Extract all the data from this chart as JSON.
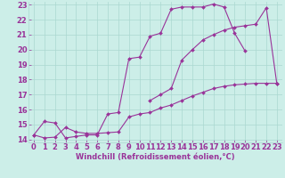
{
  "line1_x": [
    0,
    1,
    2,
    3,
    4,
    5,
    6,
    7,
    8,
    9,
    10,
    11,
    12,
    13,
    14,
    15,
    16,
    17,
    18,
    19,
    20,
    21,
    22,
    23
  ],
  "line1_y": [
    14.3,
    15.2,
    15.1,
    14.1,
    14.2,
    14.3,
    14.3,
    15.7,
    15.8,
    19.4,
    19.5,
    20.9,
    21.1,
    22.7,
    22.85,
    22.85,
    22.85,
    23.05,
    22.85,
    21.1,
    19.9,
    null,
    null,
    null
  ],
  "line2_x": [
    0,
    1,
    2,
    3,
    4,
    5,
    6,
    7,
    8,
    9,
    10,
    11,
    12,
    13,
    14,
    15,
    16,
    17,
    18,
    19,
    20,
    21,
    22,
    23
  ],
  "line2_y": [
    14.3,
    14.1,
    14.15,
    14.8,
    14.5,
    14.4,
    14.4,
    14.45,
    14.5,
    15.5,
    15.7,
    15.8,
    16.1,
    16.3,
    16.6,
    16.9,
    17.15,
    17.4,
    17.55,
    17.65,
    17.7,
    17.75,
    17.75,
    17.75
  ],
  "line3_x": [
    0,
    1,
    2,
    3,
    4,
    5,
    6,
    7,
    8,
    9,
    10,
    11,
    12,
    13,
    14,
    15,
    16,
    17,
    18,
    19,
    20,
    21,
    22,
    23
  ],
  "line3_y": [
    null,
    null,
    null,
    null,
    null,
    null,
    null,
    null,
    null,
    null,
    null,
    16.6,
    17.0,
    17.4,
    19.3,
    20.0,
    20.65,
    21.0,
    21.3,
    21.5,
    21.6,
    21.7,
    22.8,
    17.7
  ],
  "line_color": "#993399",
  "bg_color": "#cceee8",
  "grid_color": "#aad8d0",
  "xlabel": "Windchill (Refroidissement éolien,°C)",
  "xlim": [
    0,
    23
  ],
  "ylim": [
    14,
    23
  ],
  "xticks": [
    0,
    1,
    2,
    3,
    4,
    5,
    6,
    7,
    8,
    9,
    10,
    11,
    12,
    13,
    14,
    15,
    16,
    17,
    18,
    19,
    20,
    21,
    22,
    23
  ],
  "yticks": [
    14,
    15,
    16,
    17,
    18,
    19,
    20,
    21,
    22,
    23
  ],
  "tick_color": "#993399",
  "label_color": "#993399",
  "fontsize": 6
}
